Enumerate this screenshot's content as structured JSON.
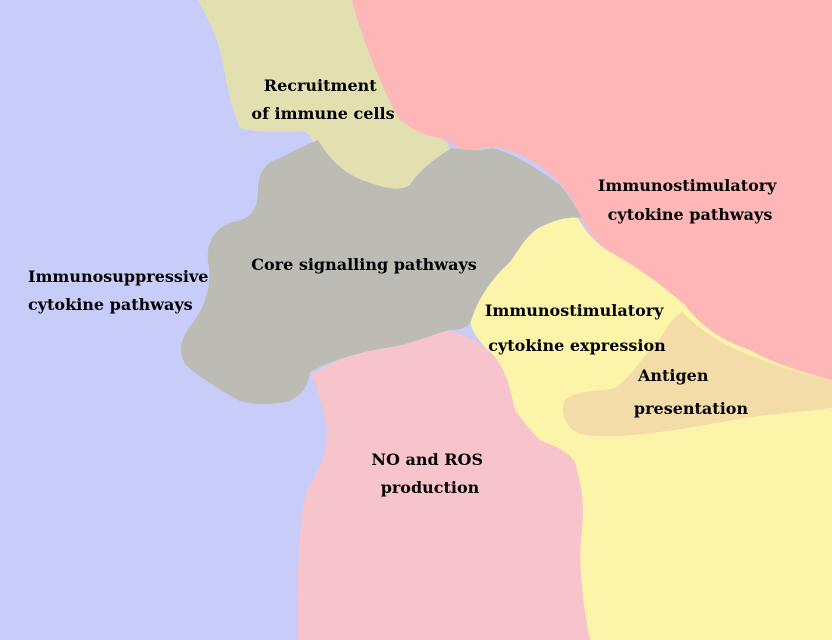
{
  "regions": [
    {
      "id": "immunosuppressive",
      "color": "#c8ccf8",
      "label_lines": [
        "Immunosuppressive",
        "cytokine pathways"
      ]
    },
    {
      "id": "recruitment",
      "color": "#e2e0b0",
      "label_lines": [
        "Recruitment",
        "of immune cells"
      ]
    },
    {
      "id": "immunostimulatory-pathways",
      "color": "#feb6b6",
      "label_lines": [
        "Immunostimulatory",
        "cytokine pathways"
      ]
    },
    {
      "id": "core-signalling",
      "color": "#bcbcb4",
      "label_lines": [
        "Core signalling pathways"
      ]
    },
    {
      "id": "immunostimulatory-expression",
      "color": "#fcf4a8",
      "label_lines": [
        "Immunostimulatory",
        "cytokine expression"
      ]
    },
    {
      "id": "antigen-presentation",
      "color": "#f4dca8",
      "label_lines": [
        "Antigen",
        "presentation"
      ]
    },
    {
      "id": "no-ros",
      "color": "#f8c4cc",
      "label_lines": [
        "NO and ROS",
        "production"
      ]
    }
  ]
}
